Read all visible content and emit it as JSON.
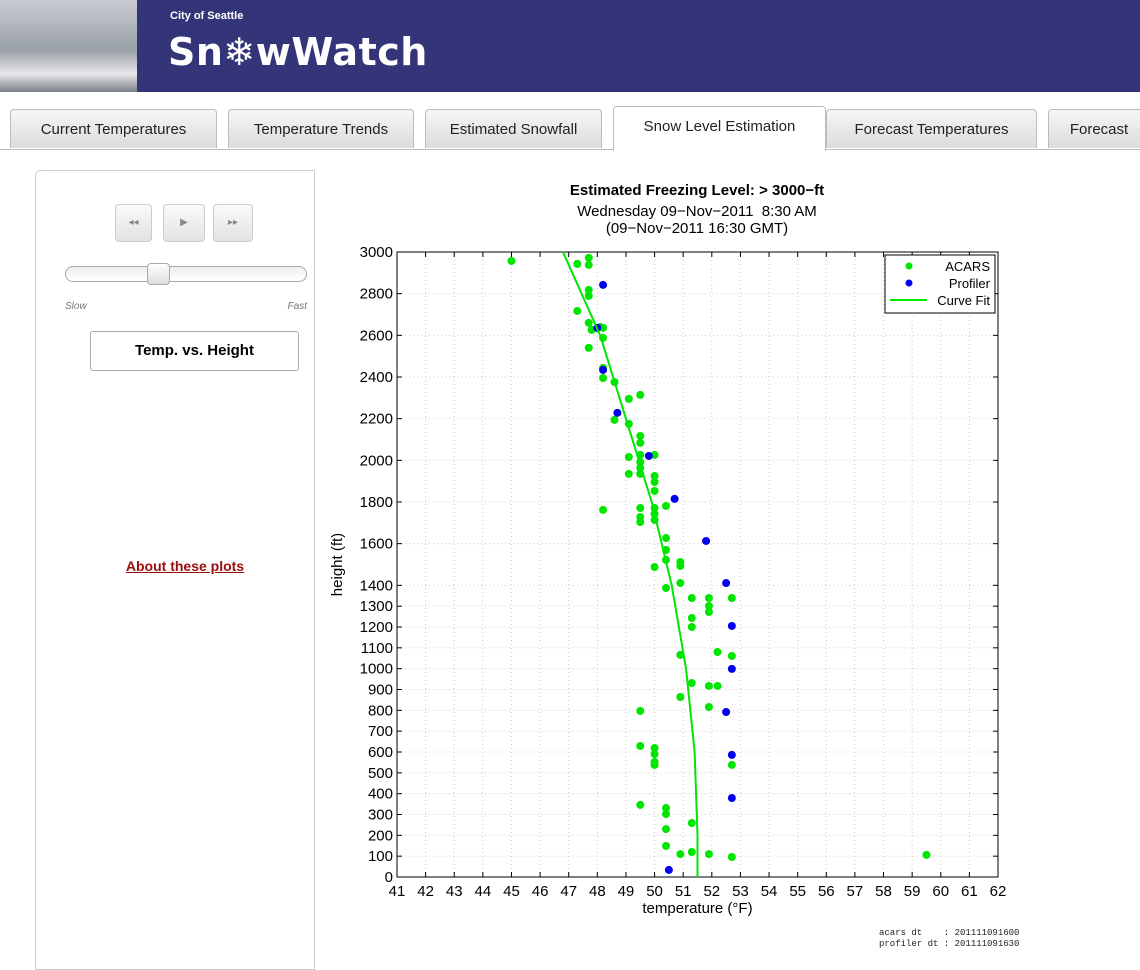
{
  "header": {
    "org": "City of Seattle",
    "title": "Sn❄wWatch"
  },
  "tabs": [
    "Current Temperatures",
    "Temperature Trends",
    "Estimated Snowfall",
    "Snow Level Estimation",
    "Forecast Temperatures",
    "Forecast"
  ],
  "active_tab": 3,
  "controls": {
    "slow": "Slow",
    "fast": "Fast",
    "plot_button": "Temp. vs. Height",
    "link": "About these plots"
  },
  "chart_data": {
    "type": "scatter",
    "title": "Estimated Freezing Level: > 3000−ft",
    "subtitle": [
      "Wednesday 09−Nov−2011  8:30 AM",
      "(09−Nov−2011 16:30 GMT)"
    ],
    "xlabel": "temperature (°F)",
    "ylabel": "height (ft)",
    "xlim": [
      41,
      62
    ],
    "ylim": [
      0,
      3000
    ],
    "xticks": [
      41,
      42,
      43,
      44,
      45,
      46,
      47,
      48,
      49,
      50,
      51,
      52,
      53,
      54,
      55,
      56,
      57,
      58,
      59,
      60,
      61,
      62
    ],
    "yticks": [
      0,
      100,
      200,
      300,
      400,
      500,
      600,
      700,
      800,
      900,
      1000,
      1100,
      1200,
      1300,
      1400,
      1600,
      1800,
      2000,
      2200,
      2400,
      2600,
      2800,
      3000
    ],
    "grid": true,
    "legend": "upper right",
    "series": [
      {
        "name": "ACARS",
        "color": "#00e600",
        "mode": "markers",
        "x": [
          45.0,
          47.3,
          47.7,
          47.7,
          47.7,
          47.7,
          47.3,
          47.7,
          47.8,
          48.2,
          48.2,
          47.7,
          48.1,
          48.2,
          48.2,
          48.6,
          49.1,
          49.5,
          48.6,
          49.1,
          49.5,
          49.5,
          49.1,
          49.5,
          49.5,
          49.5,
          49.5,
          50.0,
          50.0,
          49.1,
          50.0,
          50.0,
          50.4,
          48.2,
          49.5,
          49.5,
          49.5,
          50.0,
          50.0,
          50.0,
          50.4,
          50.4,
          50.4,
          50.0,
          50.9,
          50.9,
          50.9,
          50.4,
          51.3,
          51.9,
          51.9,
          51.9,
          52.7,
          51.3,
          51.3,
          50.9,
          52.2,
          52.7,
          51.3,
          51.9,
          52.2,
          50.9,
          51.9,
          49.5,
          49.5,
          50.0,
          50.0,
          50.0,
          50.0,
          52.7,
          49.5,
          50.4,
          50.4,
          51.3,
          50.4,
          50.4,
          50.9,
          51.3,
          51.9,
          52.7,
          59.5
        ],
        "values": [
          2957,
          2943,
          2972,
          2938,
          2818,
          2789,
          2717,
          2660,
          2626,
          2636,
          2588,
          2540,
          2640,
          2444,
          2395,
          2376,
          2295,
          2314,
          2194,
          2175,
          2117,
          2084,
          2016,
          2026,
          1992,
          1963,
          1935,
          2026,
          1925,
          1935,
          1896,
          1853,
          1781,
          1762,
          1771,
          1728,
          1704,
          1771,
          1743,
          1714,
          1627,
          1570,
          1522,
          1488,
          1512,
          1493,
          1411,
          1387,
          1339,
          1339,
          1301,
          1272,
          1339,
          1243,
          1200,
          1066,
          1080,
          1061,
          931,
          917,
          917,
          864,
          816,
          797,
          629,
          619,
          590,
          552,
          538,
          538,
          346,
          331,
          302,
          259,
          230,
          149,
          110,
          120,
          110,
          96,
          106
        ]
      },
      {
        "name": "Profiler",
        "color": "#0000ee",
        "mode": "markers",
        "x": [
          48.2,
          48.0,
          48.2,
          48.7,
          49.8,
          50.7,
          51.8,
          52.5,
          52.7,
          52.7,
          52.5,
          52.7,
          52.7,
          50.5
        ],
        "values": [
          2842,
          2636,
          2434,
          2228,
          2021,
          1815,
          1613,
          1411,
          1205,
          999,
          792,
          586,
          379,
          34
        ]
      },
      {
        "name": "Curve Fit",
        "color": "#00e600",
        "mode": "line",
        "x": [
          46.8,
          48.1,
          49.0,
          49.9,
          50.6,
          51.1,
          51.4,
          51.5,
          51.5
        ],
        "values": [
          3000,
          2600,
          2200,
          1800,
          1400,
          1000,
          600,
          200,
          0
        ]
      }
    ]
  },
  "footer": [
    "acars dt    : 201111091600",
    "profiler dt : 201111091630"
  ]
}
